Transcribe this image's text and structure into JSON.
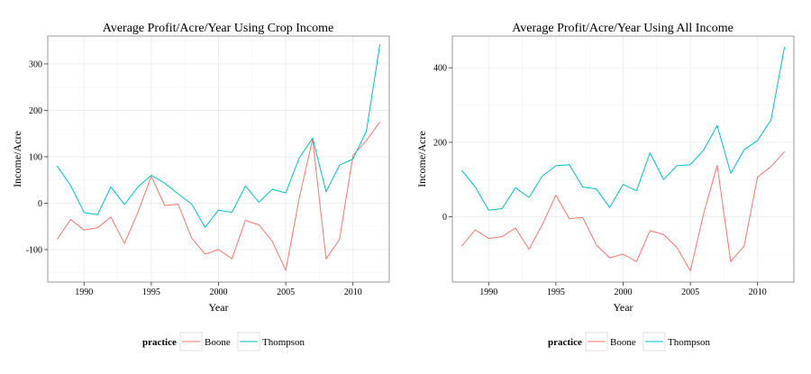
{
  "chart_data": [
    {
      "type": "line",
      "title": "Average Profit/Acre/Year Using Crop Income",
      "xlabel": "Year",
      "ylabel": "Income/Acre",
      "xlim": [
        1987.3,
        2012.7
      ],
      "ylim": [
        -170,
        360
      ],
      "x_ticks": [
        1990,
        1995,
        2000,
        2005,
        2010
      ],
      "y_ticks": [
        -100,
        0,
        100,
        200,
        300
      ],
      "x": [
        1988,
        1989,
        1990,
        1991,
        1992,
        1993,
        1994,
        1995,
        1996,
        1997,
        1998,
        1999,
        2000,
        2001,
        2002,
        2003,
        2004,
        2005,
        2006,
        2007,
        2008,
        2009,
        2010,
        2011,
        2012
      ],
      "series": [
        {
          "name": "Boone",
          "color": "#F8766D",
          "values": [
            -78,
            -35,
            -58,
            -53,
            -30,
            -87,
            -20,
            58,
            -5,
            -2,
            -75,
            -110,
            -100,
            -120,
            -37,
            -47,
            -82,
            -145,
            10,
            138,
            -120,
            -78,
            103,
            135,
            175
          ]
        },
        {
          "name": "Thompson",
          "color": "#00BFC4",
          "values": [
            80,
            38,
            -20,
            -25,
            35,
            -3,
            35,
            60,
            43,
            20,
            -2,
            -52,
            -15,
            -20,
            37,
            2,
            30,
            22,
            97,
            140,
            25,
            82,
            95,
            155,
            342
          ]
        }
      ],
      "legend": {
        "title": "practice",
        "position": "bottom"
      },
      "grid": true
    },
    {
      "type": "line",
      "title": "Average Profit/Acre/Year Using All Income",
      "xlabel": "Year",
      "ylabel": "Income/Acre",
      "xlim": [
        1987.3,
        2012.7
      ],
      "ylim": [
        -175,
        485
      ],
      "x_ticks": [
        1990,
        1995,
        2000,
        2005,
        2010
      ],
      "y_ticks": [
        0,
        200,
        400
      ],
      "x": [
        1988,
        1989,
        1990,
        1991,
        1992,
        1993,
        1994,
        1995,
        1996,
        1997,
        1998,
        1999,
        2000,
        2001,
        2002,
        2003,
        2004,
        2005,
        2006,
        2007,
        2008,
        2009,
        2010,
        2011,
        2012
      ],
      "series": [
        {
          "name": "Boone",
          "color": "#F8766D",
          "values": [
            -78,
            -35,
            -58,
            -53,
            -30,
            -87,
            -20,
            58,
            -5,
            -2,
            -75,
            -110,
            -100,
            -120,
            -37,
            -47,
            -82,
            -145,
            10,
            138,
            -120,
            -78,
            107,
            135,
            175
          ]
        },
        {
          "name": "Thompson",
          "color": "#00BFC4",
          "values": [
            125,
            80,
            18,
            22,
            78,
            52,
            110,
            137,
            140,
            80,
            75,
            25,
            87,
            70,
            172,
            100,
            137,
            140,
            180,
            245,
            117,
            180,
            205,
            260,
            455
          ]
        }
      ],
      "legend": {
        "title": "practice",
        "position": "bottom"
      },
      "grid": true
    }
  ]
}
